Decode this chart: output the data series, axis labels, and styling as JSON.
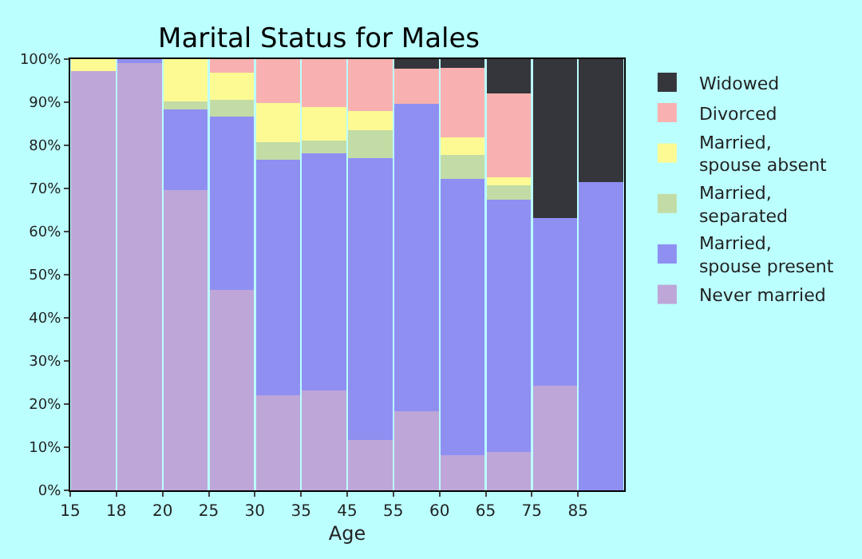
{
  "chart_data": {
    "type": "bar",
    "stacked": true,
    "title": "Marital Status for Males",
    "xlabel": "Age",
    "categories": [
      "15",
      "18",
      "20",
      "25",
      "30",
      "35",
      "45",
      "55",
      "60",
      "65",
      "75",
      "85"
    ],
    "ylim": [
      0,
      100
    ],
    "yticks": [
      {
        "value": 0,
        "label": "0%"
      },
      {
        "value": 10,
        "label": "10%"
      },
      {
        "value": 20,
        "label": "20%"
      },
      {
        "value": 30,
        "label": "30%"
      },
      {
        "value": 40,
        "label": "40%"
      },
      {
        "value": 50,
        "label": "50%"
      },
      {
        "value": 60,
        "label": "60%"
      },
      {
        "value": 70,
        "label": "70%"
      },
      {
        "value": 80,
        "label": "80%"
      },
      {
        "value": 90,
        "label": "90%"
      },
      {
        "value": 100,
        "label": "100%"
      }
    ],
    "grid": false,
    "legend": "right",
    "series": [
      {
        "name": "Never married",
        "color": "#bea6d8",
        "values": [
          97.2,
          99.0,
          69.7,
          46.5,
          22.0,
          23.1,
          11.7,
          18.3,
          8.2,
          8.9,
          24.2,
          0
        ]
      },
      {
        "name": "Married,\nspouse present",
        "color": "#8f8ff2",
        "values": [
          0,
          1.0,
          18.6,
          40.1,
          54.7,
          55.0,
          65.4,
          71.3,
          64.0,
          58.6,
          38.9,
          71.5
        ]
      },
      {
        "name": "Married,\nseparated",
        "color": "#c3dca6",
        "values": [
          0,
          0,
          1.9,
          4.0,
          4.0,
          3.0,
          6.5,
          0,
          5.6,
          3.3,
          0,
          0
        ]
      },
      {
        "name": "Married,\nspouse absent",
        "color": "#fefa93",
        "values": [
          2.8,
          0,
          9.8,
          6.2,
          9.2,
          7.7,
          4.4,
          0,
          4.0,
          1.8,
          0,
          0
        ]
      },
      {
        "name": "Divorced",
        "color": "#f8b1b0",
        "values": [
          0,
          0,
          0,
          3.2,
          10.1,
          11.2,
          12.0,
          8.1,
          16.1,
          19.5,
          0,
          0
        ]
      },
      {
        "name": "Widowed",
        "color": "#35363b",
        "values": [
          0,
          0,
          0,
          0,
          0,
          0,
          0,
          2.3,
          2.1,
          7.9,
          36.9,
          28.5
        ]
      }
    ]
  }
}
